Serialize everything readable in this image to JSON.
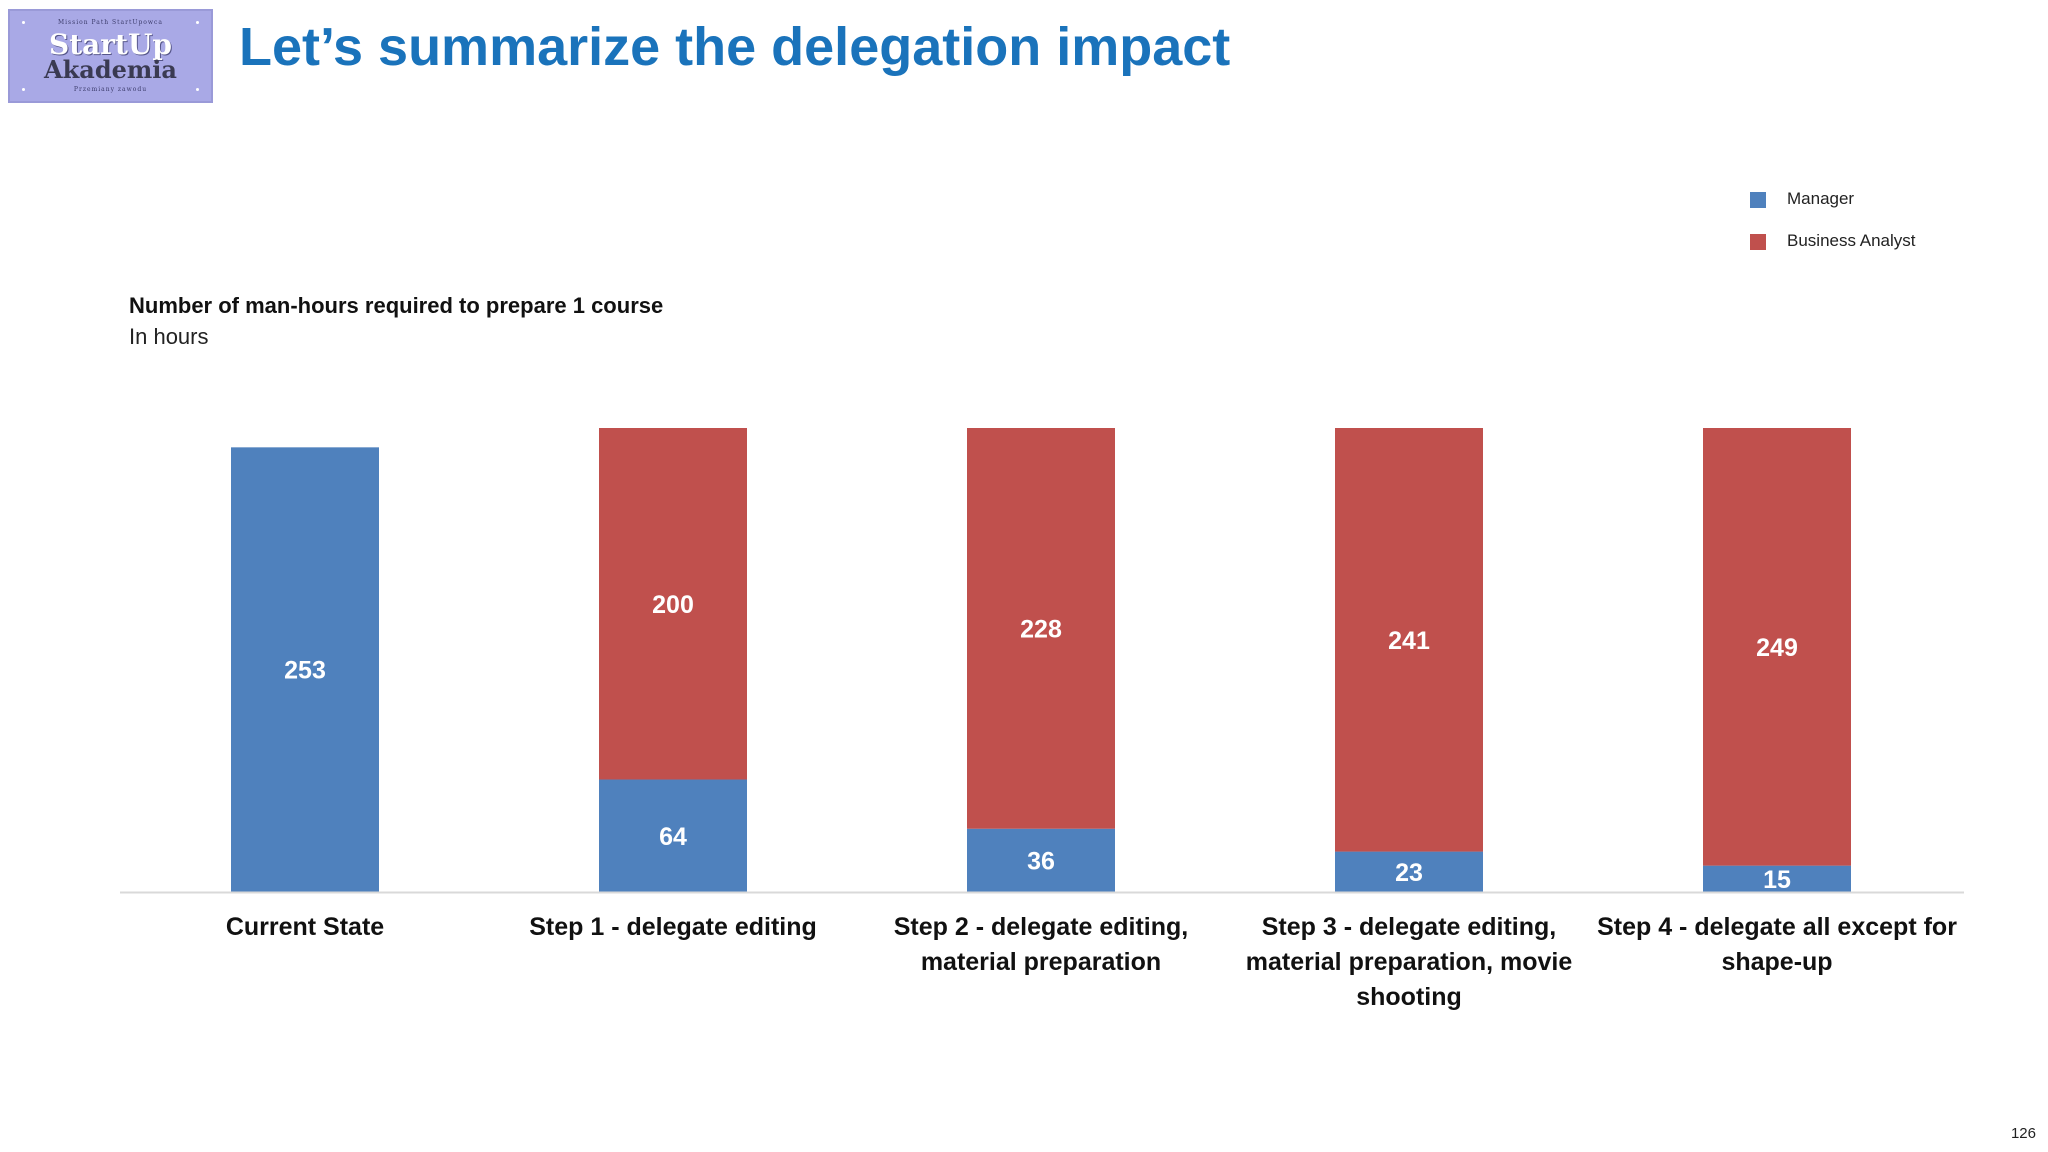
{
  "slide": {
    "title": "Let’s summarize the delegation impact",
    "page_number": "126"
  },
  "logo": {
    "top_text": "Mission Path StartUpowca",
    "line1": "StartUp",
    "line2": "Akademia",
    "bottom_text": "Przemiany zawodu"
  },
  "colors": {
    "title": "#1a73bb",
    "manager": "#4f81bd",
    "business_analyst": "#c0504d",
    "axis": "#d9d9d9"
  },
  "chart_data": {
    "type": "bar",
    "stacked": true,
    "title": "Number of man-hours required to prepare 1 course",
    "subtitle": "In hours",
    "categories": [
      "Current State",
      "Step 1 - delegate editing",
      "Step 2 - delegate editing, material preparation",
      "Step 3 - delegate editing, material preparation, movie shooting",
      "Step 4 - delegate all except for shape-up"
    ],
    "category_lines": [
      [
        "Current State"
      ],
      [
        "Step 1 - delegate editing"
      ],
      [
        "Step 2 - delegate editing,",
        "material preparation"
      ],
      [
        "Step 3 - delegate editing,",
        "material preparation, movie",
        "shooting"
      ],
      [
        "Step 4 - delegate all except for",
        "shape-up"
      ]
    ],
    "series": [
      {
        "name": "Manager",
        "color": "#4f81bd",
        "values": [
          253,
          64,
          36,
          23,
          15
        ]
      },
      {
        "name": "Business Analyst",
        "color": "#c0504d",
        "values": [
          0,
          200,
          228,
          241,
          249
        ]
      }
    ],
    "ylim": [
      0,
      264
    ],
    "xlabel": "",
    "ylabel": "",
    "grid": false,
    "legend_position": "top-right"
  }
}
